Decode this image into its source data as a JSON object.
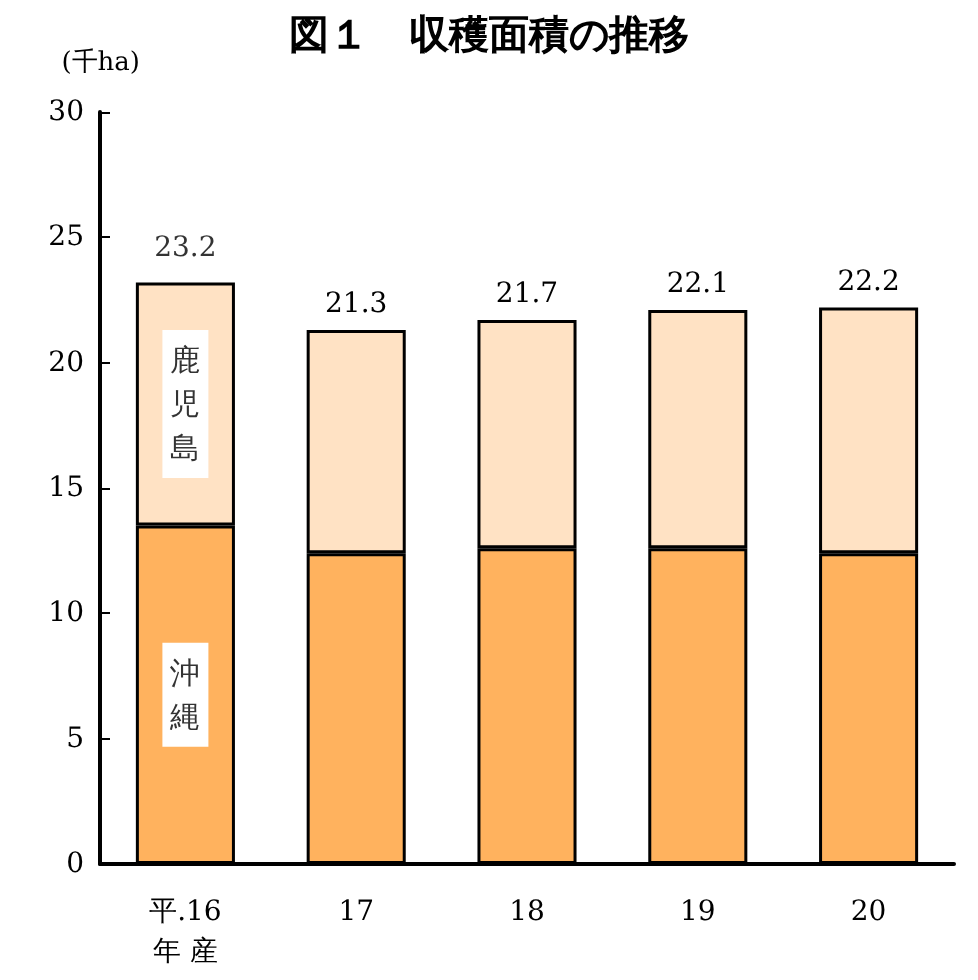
{
  "chart_data": {
    "type": "bar",
    "title": "図１　収穫面積の推移",
    "ylabel": "(千ha)",
    "categories": [
      "平.16\n年 産",
      "17",
      "18",
      "19",
      "20"
    ],
    "stacked": true,
    "series": [
      {
        "name": "沖縄",
        "color": "#ffb25e",
        "values": [
          13.5,
          12.4,
          12.6,
          12.6,
          12.4
        ]
      },
      {
        "name": "鹿児島",
        "color": "#ffe2c4",
        "values": [
          9.7,
          8.9,
          9.1,
          9.5,
          9.8
        ]
      }
    ],
    "totals": [
      "23.2",
      "21.3",
      "21.7",
      "22.1",
      "22.2"
    ],
    "ylim": [
      0,
      30
    ],
    "yticks": [
      0,
      5,
      10,
      15,
      20,
      25,
      30
    ],
    "grid": false,
    "legend": false
  }
}
